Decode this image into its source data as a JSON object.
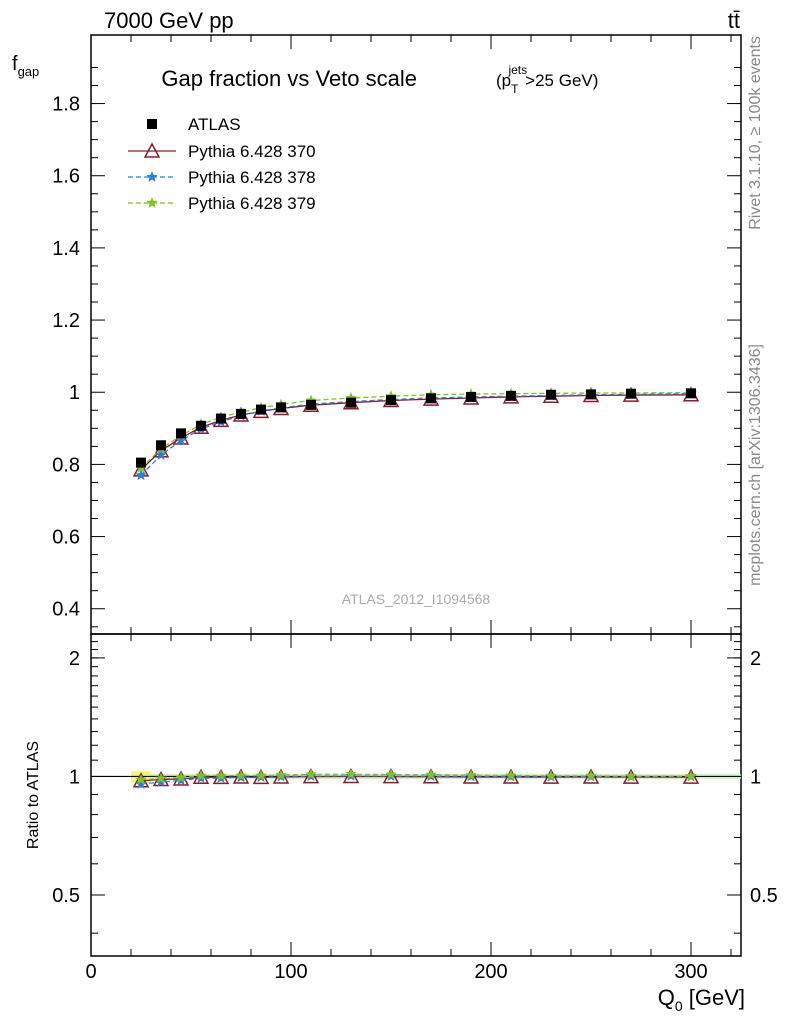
{
  "header": {
    "left": "7000 GeV pp",
    "right": "tt̄"
  },
  "side_labels": {
    "top": "Rivet 3.1.10, ≥ 100k events",
    "bottom": "mcplots.cern.ch [arXiv:1306.3436]"
  },
  "watermark": "ATLAS_2012_I1094568",
  "chart_data": {
    "type": "line",
    "title_main": "Gap fraction vs Veto scale",
    "title_cut": {
      "open": "(p",
      "sub": "T",
      "sup": "jets",
      "rest": ">25 GeV)"
    },
    "ylabel": {
      "base": "f",
      "sub": "gap"
    },
    "xlabel": {
      "base": "Q",
      "sub": "0",
      "unit": " [GeV]"
    },
    "ratio_ylabel": "Ratio to ATLAS",
    "xlim": [
      0,
      325
    ],
    "ylim": [
      0.33,
      1.99
    ],
    "ratio_ylim": [
      0.35,
      2.3
    ],
    "x_ticks": [
      "0",
      "100",
      "200",
      "300"
    ],
    "x_tick_values": [
      0,
      100,
      200,
      300
    ],
    "y_ticks": [
      "0.4",
      "0.6",
      "0.8",
      "1",
      "1.2",
      "1.4",
      "1.6",
      "1.8"
    ],
    "y_tick_values": [
      0.4,
      0.6,
      0.8,
      1.0,
      1.2,
      1.4,
      1.6,
      1.8
    ],
    "ratio_ticks": [
      "0.5",
      "1",
      "2"
    ],
    "ratio_tick_values": [
      0.5,
      1,
      2
    ],
    "x": [
      25,
      35,
      45,
      55,
      65,
      75,
      85,
      95,
      110,
      130,
      150,
      170,
      190,
      210,
      230,
      250,
      270,
      300
    ],
    "series": [
      {
        "name": "ATLAS",
        "color": "#000000",
        "marker": "square",
        "line": "none",
        "values": [
          0.805,
          0.853,
          0.886,
          0.907,
          0.927,
          0.94,
          0.952,
          0.958,
          0.965,
          0.971,
          0.978,
          0.983,
          0.987,
          0.99,
          0.993,
          0.994,
          0.996,
          0.997
        ]
      },
      {
        "name": "Pythia 6.428 370",
        "color": "#8b1a2b",
        "marker": "triangle-open",
        "line": "solid",
        "values": [
          0.785,
          0.838,
          0.873,
          0.903,
          0.922,
          0.937,
          0.947,
          0.955,
          0.964,
          0.971,
          0.977,
          0.981,
          0.984,
          0.987,
          0.989,
          0.991,
          0.992,
          0.993
        ]
      },
      {
        "name": "Pythia 6.428 378",
        "color": "#2b7fd6",
        "marker": "star",
        "line": "dashed",
        "values": [
          0.77,
          0.826,
          0.866,
          0.898,
          0.918,
          0.935,
          0.948,
          0.957,
          0.967,
          0.974,
          0.98,
          0.984,
          0.987,
          0.989,
          0.991,
          0.993,
          0.994,
          0.996
        ]
      },
      {
        "name": "Pythia 6.428 379",
        "color": "#7ec225",
        "marker": "star",
        "line": "dashed",
        "values": [
          0.79,
          0.843,
          0.88,
          0.911,
          0.931,
          0.945,
          0.957,
          0.966,
          0.977,
          0.984,
          0.989,
          0.993,
          0.995,
          0.996,
          0.997,
          0.998,
          0.998,
          0.999
        ]
      }
    ],
    "grid": false,
    "legend_position": "top-left"
  }
}
